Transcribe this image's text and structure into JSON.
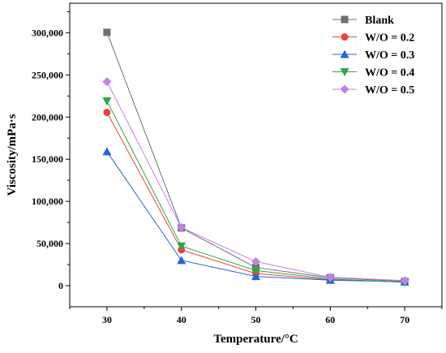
{
  "chart_data": {
    "type": "line",
    "xlabel": "Temperature/°C",
    "ylabel": "Viscosity/mPa·s",
    "x": [
      30,
      40,
      50,
      60,
      70
    ],
    "xlim": [
      25,
      75
    ],
    "ylim": [
      -25000,
      335000
    ],
    "xticks": [
      "30",
      "40",
      "50",
      "60",
      "70"
    ],
    "yticks": [
      "0",
      "50,000",
      "100,000",
      "150,000",
      "200,000",
      "250,000",
      "300,000"
    ],
    "legend_position": "top-right",
    "series": [
      {
        "name": "Blank",
        "marker": "square",
        "color": "#6e6e6e",
        "values": [
          300500,
          68500,
          21500,
          9500,
          5000
        ]
      },
      {
        "name": "W/O = 0.2",
        "marker": "circle",
        "color": "#e8423b",
        "values": [
          205500,
          42500,
          14500,
          7000,
          4500
        ]
      },
      {
        "name": "W/O = 0.3",
        "marker": "triangle-up",
        "color": "#2563d9",
        "values": [
          159000,
          30000,
          11000,
          6500,
          4500
        ]
      },
      {
        "name": "W/O = 0.4",
        "marker": "triangle-down",
        "color": "#2aa845",
        "values": [
          219000,
          47000,
          18000,
          8000,
          4000
        ]
      },
      {
        "name": "W/O = 0.5",
        "marker": "diamond",
        "color": "#c77ee6",
        "values": [
          242000,
          69000,
          28500,
          10000,
          6000
        ]
      }
    ]
  }
}
